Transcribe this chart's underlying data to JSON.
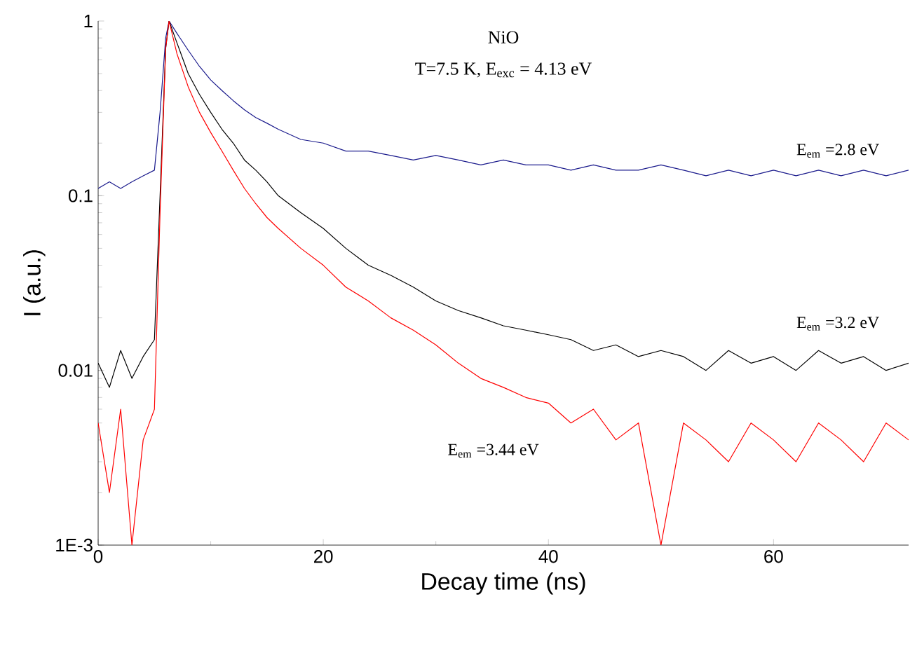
{
  "chart_data": {
    "type": "line",
    "xlabel": "Decay time (ns)",
    "ylabel": "I (a.u.)",
    "log": "y",
    "xlim": [
      0,
      72
    ],
    "ylim": [
      0.001,
      1
    ],
    "xticks": [
      0,
      20,
      40,
      60
    ],
    "yticks": [
      {
        "value": 0.001,
        "label": "1E-3"
      },
      0.01,
      0.1,
      1
    ],
    "annotations": [
      "NiO",
      "T=7.5 K,    E$_{exc}$ = 4.13 eV"
    ],
    "x": [
      0,
      1,
      2,
      3,
      4,
      5,
      5.5,
      6,
      6.3,
      7,
      8,
      9,
      10,
      11,
      12,
      13,
      14,
      15,
      16,
      18,
      20,
      22,
      24,
      26,
      28,
      30,
      32,
      34,
      36,
      38,
      40,
      42,
      44,
      46,
      48,
      50,
      52,
      54,
      56,
      58,
      60,
      62,
      64,
      66,
      68,
      70,
      72
    ],
    "series": [
      {
        "name": "E$_{em}$ =2.8 eV",
        "color": "#1a1a8c",
        "values": [
          0.11,
          0.12,
          0.11,
          0.12,
          0.13,
          0.14,
          0.3,
          0.8,
          1,
          0.85,
          0.68,
          0.55,
          0.46,
          0.4,
          0.35,
          0.31,
          0.28,
          0.26,
          0.24,
          0.21,
          0.2,
          0.18,
          0.18,
          0.17,
          0.16,
          0.17,
          0.16,
          0.15,
          0.16,
          0.15,
          0.15,
          0.14,
          0.15,
          0.14,
          0.14,
          0.15,
          0.14,
          0.13,
          0.14,
          0.13,
          0.14,
          0.13,
          0.14,
          0.13,
          0.14,
          0.13,
          0.14
        ]
      },
      {
        "name": "E$_{em}$ =3.2 eV",
        "color": "#000000",
        "values": [
          0.011,
          0.008,
          0.013,
          0.009,
          0.012,
          0.015,
          0.1,
          0.7,
          1,
          0.75,
          0.5,
          0.38,
          0.3,
          0.24,
          0.2,
          0.16,
          0.14,
          0.12,
          0.1,
          0.08,
          0.065,
          0.05,
          0.04,
          0.035,
          0.03,
          0.025,
          0.022,
          0.02,
          0.018,
          0.017,
          0.016,
          0.015,
          0.013,
          0.014,
          0.012,
          0.013,
          0.012,
          0.01,
          0.013,
          0.011,
          0.012,
          0.01,
          0.013,
          0.011,
          0.012,
          0.01,
          0.011
        ]
      },
      {
        "name": "E$_{em}$ =3.44 eV",
        "color": "#ff0000",
        "values": [
          0.005,
          0.002,
          0.006,
          0.001,
          0.004,
          0.006,
          0.08,
          0.7,
          1,
          0.65,
          0.42,
          0.3,
          0.23,
          0.18,
          0.14,
          0.11,
          0.09,
          0.075,
          0.065,
          0.05,
          0.04,
          0.03,
          0.025,
          0.02,
          0.017,
          0.014,
          0.011,
          0.009,
          0.008,
          0.007,
          0.0065,
          0.005,
          0.006,
          0.004,
          0.005,
          0.001,
          0.005,
          0.004,
          0.003,
          0.005,
          0.004,
          0.003,
          0.005,
          0.004,
          0.003,
          0.005,
          0.004
        ]
      }
    ]
  }
}
